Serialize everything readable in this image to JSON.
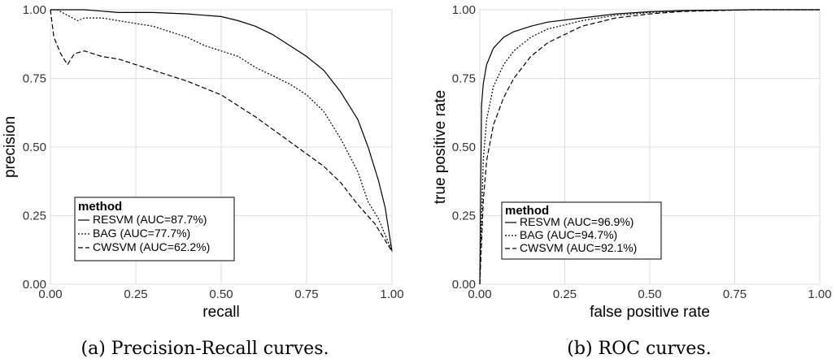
{
  "chart_data": [
    {
      "type": "line",
      "panel_id": "pr",
      "caption": "(a) Precision-Recall curves.",
      "xlabel": "recall",
      "ylabel": "precision",
      "xlim": [
        0,
        1
      ],
      "ylim": [
        0,
        1
      ],
      "x_ticks": [
        "0.00",
        "0.25",
        "0.50",
        "0.75",
        "1.00"
      ],
      "y_ticks": [
        "0.00",
        "0.25",
        "0.50",
        "0.75",
        "1.00"
      ],
      "grid": true,
      "legend_title": "method",
      "legend_position": "bottom-left",
      "series": [
        {
          "name": "RESVM (AUC=87.7%)",
          "dash": "",
          "points": [
            [
              0.0,
              1.0
            ],
            [
              0.1,
              1.0
            ],
            [
              0.2,
              0.99
            ],
            [
              0.3,
              0.99
            ],
            [
              0.4,
              0.985
            ],
            [
              0.5,
              0.975
            ],
            [
              0.55,
              0.96
            ],
            [
              0.6,
              0.94
            ],
            [
              0.65,
              0.91
            ],
            [
              0.7,
              0.87
            ],
            [
              0.75,
              0.83
            ],
            [
              0.8,
              0.78
            ],
            [
              0.85,
              0.7
            ],
            [
              0.9,
              0.6
            ],
            [
              0.93,
              0.5
            ],
            [
              0.96,
              0.38
            ],
            [
              0.98,
              0.28
            ],
            [
              1.0,
              0.12
            ]
          ]
        },
        {
          "name": "BAG (AUC=77.7%)",
          "dash": "2 2",
          "points": [
            [
              0.0,
              1.0
            ],
            [
              0.02,
              1.0
            ],
            [
              0.05,
              0.98
            ],
            [
              0.08,
              0.96
            ],
            [
              0.1,
              0.97
            ],
            [
              0.15,
              0.97
            ],
            [
              0.2,
              0.96
            ],
            [
              0.3,
              0.94
            ],
            [
              0.4,
              0.9
            ],
            [
              0.45,
              0.87
            ],
            [
              0.5,
              0.85
            ],
            [
              0.55,
              0.83
            ],
            [
              0.6,
              0.79
            ],
            [
              0.65,
              0.76
            ],
            [
              0.7,
              0.73
            ],
            [
              0.75,
              0.69
            ],
            [
              0.8,
              0.63
            ],
            [
              0.85,
              0.53
            ],
            [
              0.9,
              0.41
            ],
            [
              0.93,
              0.3
            ],
            [
              0.96,
              0.24
            ],
            [
              1.0,
              0.12
            ]
          ]
        },
        {
          "name": "CWSVM (AUC=62.2%)",
          "dash": "6 3",
          "points": [
            [
              0.0,
              1.0
            ],
            [
              0.01,
              0.9
            ],
            [
              0.03,
              0.84
            ],
            [
              0.05,
              0.8
            ],
            [
              0.07,
              0.84
            ],
            [
              0.1,
              0.85
            ],
            [
              0.15,
              0.83
            ],
            [
              0.2,
              0.82
            ],
            [
              0.3,
              0.78
            ],
            [
              0.4,
              0.74
            ],
            [
              0.5,
              0.69
            ],
            [
              0.6,
              0.61
            ],
            [
              0.7,
              0.52
            ],
            [
              0.8,
              0.43
            ],
            [
              0.85,
              0.37
            ],
            [
              0.9,
              0.29
            ],
            [
              0.95,
              0.22
            ],
            [
              1.0,
              0.12
            ]
          ]
        }
      ]
    },
    {
      "type": "line",
      "panel_id": "roc",
      "caption": "(b) ROC curves.",
      "xlabel": "false positive rate",
      "ylabel": "true positive rate",
      "xlim": [
        0,
        1
      ],
      "ylim": [
        0,
        1
      ],
      "x_ticks": [
        "0.00",
        "0.25",
        "0.50",
        "0.75",
        "1.00"
      ],
      "y_ticks": [
        "0.00",
        "0.25",
        "0.50",
        "0.75",
        "1.00"
      ],
      "grid": true,
      "legend_title": "method",
      "legend_position": "bottom-left",
      "series": [
        {
          "name": "RESVM (AUC=96.9%)",
          "dash": "",
          "points": [
            [
              0.0,
              0.0
            ],
            [
              0.005,
              0.65
            ],
            [
              0.01,
              0.73
            ],
            [
              0.02,
              0.8
            ],
            [
              0.04,
              0.86
            ],
            [
              0.07,
              0.9
            ],
            [
              0.1,
              0.92
            ],
            [
              0.15,
              0.94
            ],
            [
              0.2,
              0.955
            ],
            [
              0.3,
              0.97
            ],
            [
              0.4,
              0.985
            ],
            [
              0.5,
              0.993
            ],
            [
              0.6,
              0.997
            ],
            [
              0.8,
              1.0
            ],
            [
              1.0,
              1.0
            ]
          ]
        },
        {
          "name": "BAG (AUC=94.7%)",
          "dash": "2 2",
          "points": [
            [
              0.0,
              0.0
            ],
            [
              0.01,
              0.45
            ],
            [
              0.02,
              0.6
            ],
            [
              0.04,
              0.72
            ],
            [
              0.07,
              0.8
            ],
            [
              0.1,
              0.85
            ],
            [
              0.15,
              0.9
            ],
            [
              0.2,
              0.93
            ],
            [
              0.3,
              0.96
            ],
            [
              0.4,
              0.98
            ],
            [
              0.5,
              0.99
            ],
            [
              0.6,
              0.996
            ],
            [
              0.8,
              1.0
            ],
            [
              1.0,
              1.0
            ]
          ]
        },
        {
          "name": "CWSVM (AUC=92.1%)",
          "dash": "6 3",
          "points": [
            [
              0.0,
              0.0
            ],
            [
              0.01,
              0.3
            ],
            [
              0.02,
              0.45
            ],
            [
              0.04,
              0.58
            ],
            [
              0.07,
              0.68
            ],
            [
              0.1,
              0.75
            ],
            [
              0.15,
              0.83
            ],
            [
              0.2,
              0.88
            ],
            [
              0.3,
              0.94
            ],
            [
              0.4,
              0.97
            ],
            [
              0.5,
              0.985
            ],
            [
              0.6,
              0.994
            ],
            [
              0.8,
              1.0
            ],
            [
              1.0,
              1.0
            ]
          ]
        }
      ]
    }
  ]
}
